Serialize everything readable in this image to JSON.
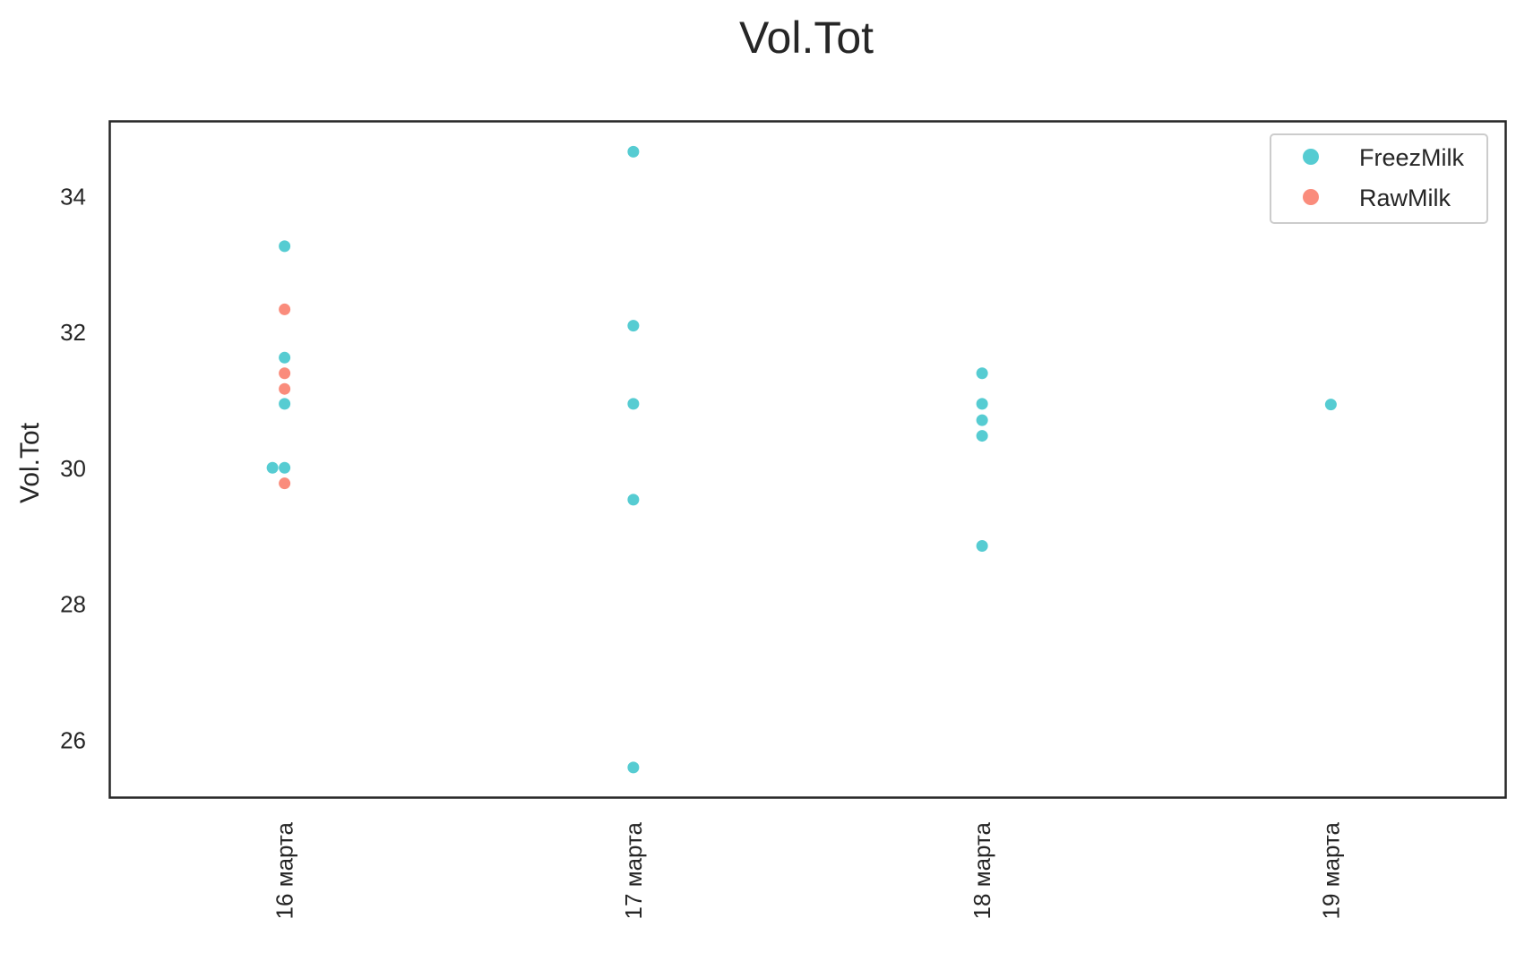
{
  "chart_data": {
    "type": "scatter",
    "title": "Vol.Tot",
    "xlabel": "",
    "ylabel": "Vol.Tot",
    "categories": [
      "16 марта",
      "17 марта",
      "18 марта",
      "19 марта"
    ],
    "yticks": [
      26,
      28,
      30,
      32,
      34
    ],
    "ylim": [
      25.15,
      35.1
    ],
    "grid": false,
    "legend_position": "top-right",
    "series": [
      {
        "name": "FreezMilk",
        "color": "#56ccd2",
        "points": [
          {
            "x": "16 марта",
            "y": 33.27
          },
          {
            "x": "16 марта",
            "y": 31.63
          },
          {
            "x": "16 марта",
            "y": 30.95
          },
          {
            "x": "16 марта",
            "y": 30.01
          },
          {
            "x": "16 марта",
            "y": 30.01
          },
          {
            "x": "17 марта",
            "y": 34.66
          },
          {
            "x": "17 марта",
            "y": 32.1
          },
          {
            "x": "17 марта",
            "y": 30.95
          },
          {
            "x": "17 марта",
            "y": 29.54
          },
          {
            "x": "17 марта",
            "y": 25.6
          },
          {
            "x": "18 марта",
            "y": 31.4
          },
          {
            "x": "18 марта",
            "y": 30.95
          },
          {
            "x": "18 марта",
            "y": 30.71
          },
          {
            "x": "18 марта",
            "y": 30.48
          },
          {
            "x": "18 марта",
            "y": 28.86
          },
          {
            "x": "19 марта",
            "y": 30.94
          }
        ]
      },
      {
        "name": "RawMilk",
        "color": "#fa8c7c",
        "points": [
          {
            "x": "16 марта",
            "y": 32.34
          },
          {
            "x": "16 марта",
            "y": 31.4
          },
          {
            "x": "16 марта",
            "y": 31.17
          },
          {
            "x": "16 марта",
            "y": 29.78
          }
        ]
      }
    ]
  }
}
